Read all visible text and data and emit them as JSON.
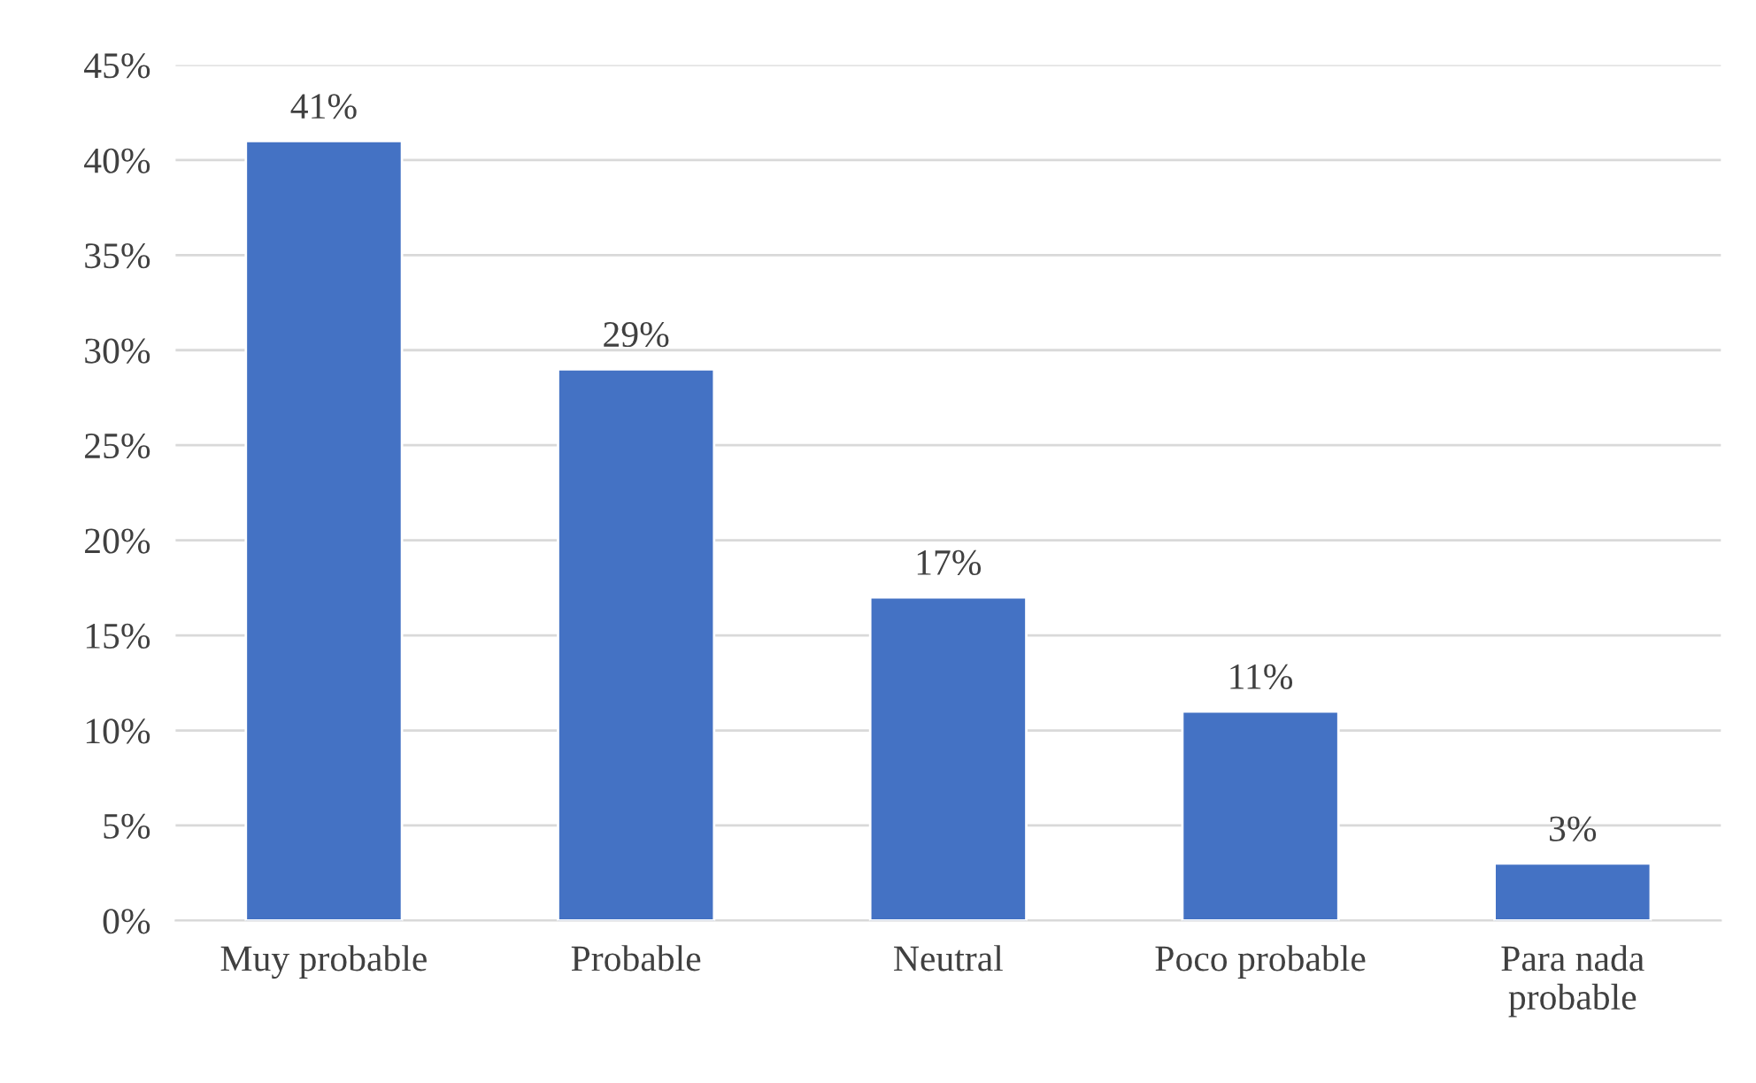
{
  "chart_data": {
    "type": "bar",
    "categories": [
      "Muy probable",
      "Probable",
      "Neutral",
      "Poco probable",
      "Para nada\nprobable"
    ],
    "values": [
      41,
      29,
      17,
      11,
      3
    ],
    "value_labels": [
      "41%",
      "29%",
      "17%",
      "11%",
      "3%"
    ],
    "color": "#4472c4",
    "ylim": [
      0,
      45
    ],
    "yticks": [
      {
        "value": 0,
        "label": "0%"
      },
      {
        "value": 5,
        "label": "5%"
      },
      {
        "value": 10,
        "label": "10%"
      },
      {
        "value": 15,
        "label": "15%"
      },
      {
        "value": 20,
        "label": "20%"
      },
      {
        "value": 25,
        "label": "25%"
      },
      {
        "value": 30,
        "label": "30%"
      },
      {
        "value": 35,
        "label": "35%"
      },
      {
        "value": 40,
        "label": "40%"
      },
      {
        "value": 45,
        "label": "45%"
      }
    ],
    "grid": "y",
    "legend": false
  }
}
